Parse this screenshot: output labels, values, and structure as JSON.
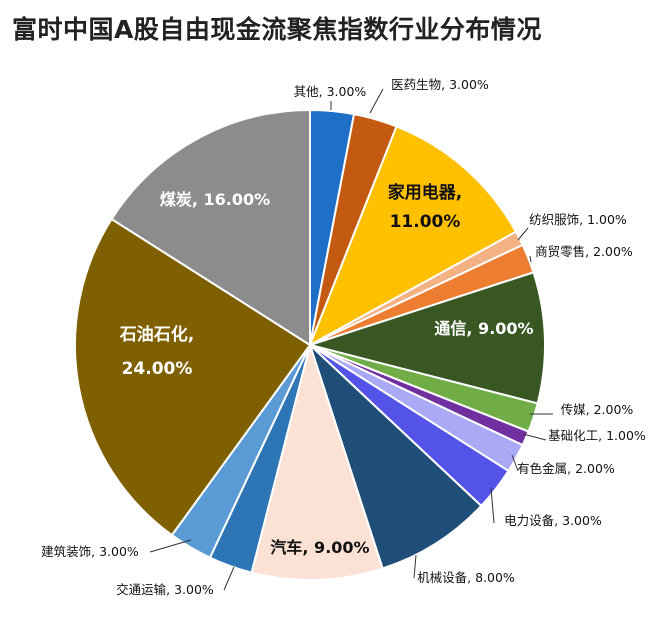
{
  "chart_data": {
    "type": "pie",
    "title": "富时中国A股自由现金流聚焦指数行业分布情况",
    "categories": [
      "其他",
      "医药生物",
      "家用电器",
      "纺织服饰",
      "商贸零售",
      "通信",
      "传媒",
      "基础化工",
      "有色金属",
      "电力设备",
      "机械设备",
      "汽车",
      "交通运输",
      "建筑装饰",
      "石油石化",
      "煤炭"
    ],
    "values": [
      3,
      3,
      11,
      1,
      2,
      9,
      2,
      1,
      2,
      3,
      8,
      9,
      3,
      3,
      24,
      16
    ],
    "labels": [
      "其他, 3.00%",
      "医药生物, 3.00%",
      "家用电器, 11.00%",
      "纺织服饰, 1.00%",
      "商贸零售, 2.00%",
      "通信, 9.00%",
      "传媒, 2.00%",
      "基础化工, 1.00%",
      "有色金属, 2.00%",
      "电力设备, 3.00%",
      "机械设备, 8.00%",
      "汽车, 9.00%",
      "交通运输, 3.00%",
      "建筑装饰, 3.00%",
      "石油石化, 24.00%",
      "煤炭, 16.00%"
    ],
    "colors": [
      "#1f6fc9",
      "#c45a11",
      "#ffc000",
      "#f4b183",
      "#ed7d31",
      "#385723",
      "#70ad47",
      "#7030a0",
      "#a9a9f5",
      "#5353e8",
      "#1f4e79",
      "#fbe2d5",
      "#2e75b6",
      "#5b9bd5",
      "#7f6000",
      "#8c8c8c"
    ],
    "start_angle": "12 o'clock",
    "direction": "clockwise"
  }
}
